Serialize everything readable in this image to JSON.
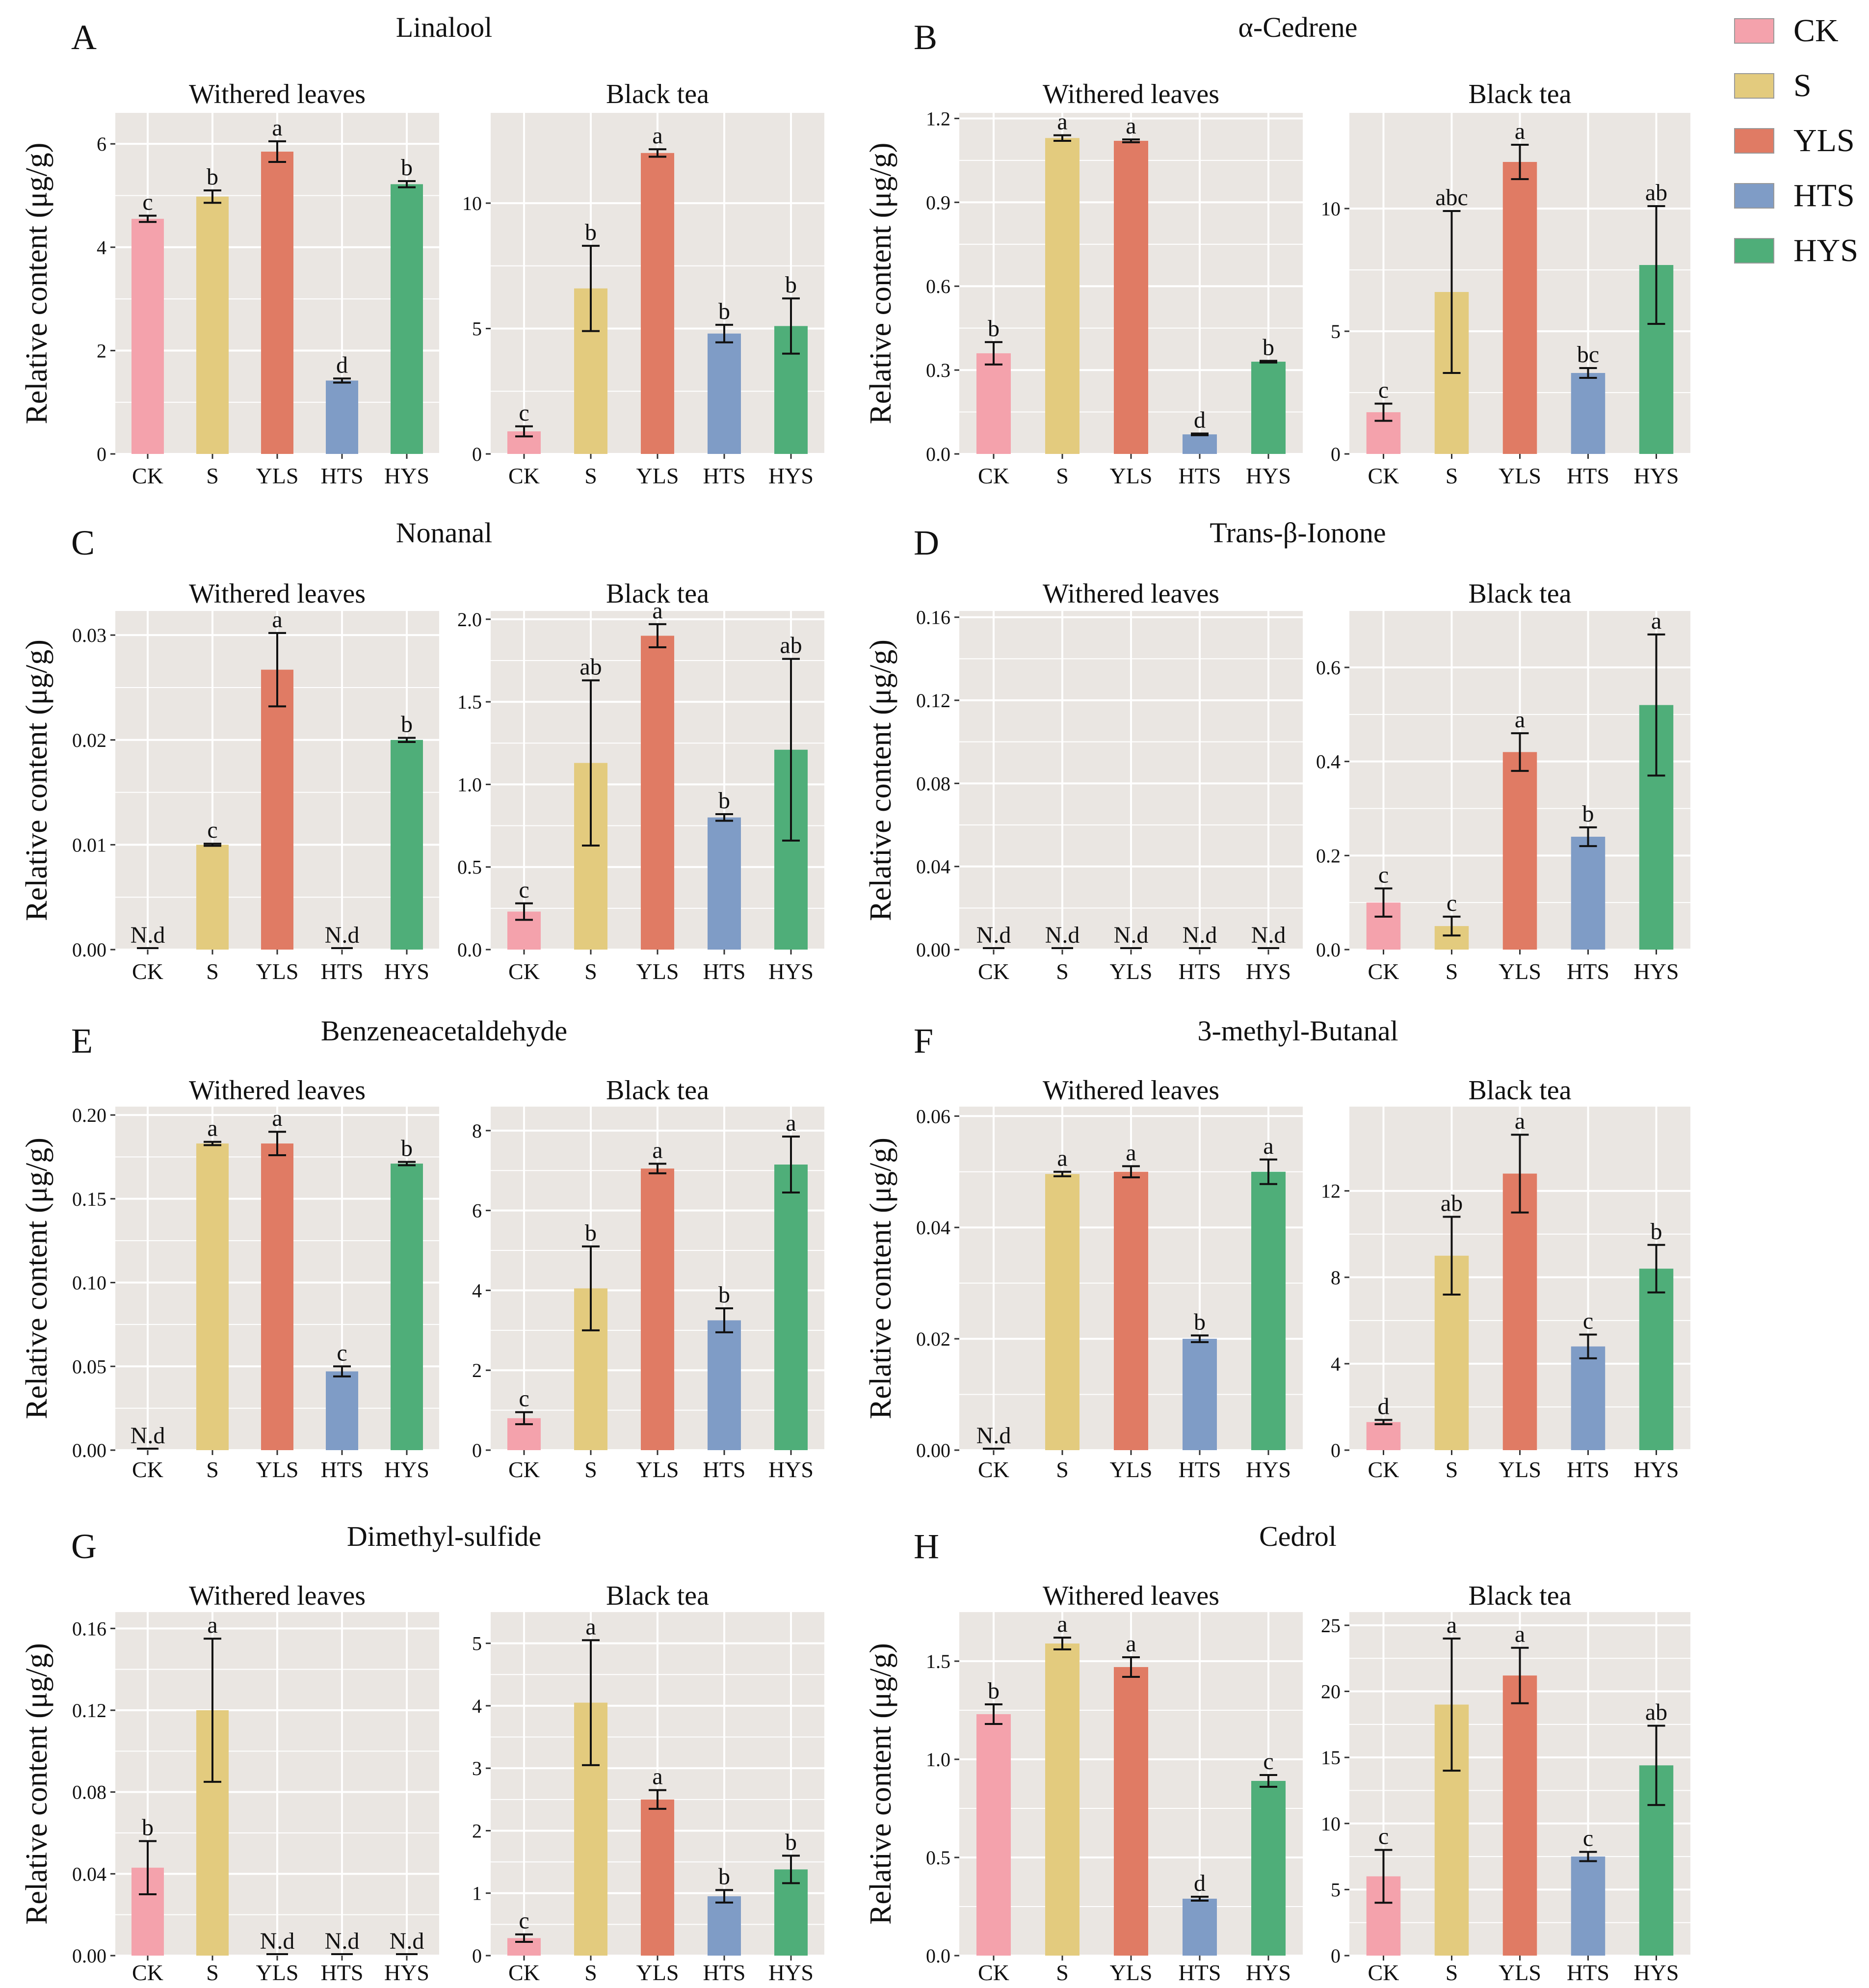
{
  "legend": [
    {
      "label": "CK",
      "color": "#F4A2AC"
    },
    {
      "label": "S",
      "color": "#E3CB7E"
    },
    {
      "label": "YLS",
      "color": "#E07B64"
    },
    {
      "label": "HTS",
      "color": "#7F9CC6"
    },
    {
      "label": "HYS",
      "color": "#4FAE79"
    }
  ],
  "colors": {
    "panel_bg": "#EAE6E2",
    "grid": "#FFFFFF",
    "error_bar": "#111111"
  },
  "ylabel": "Relative content (μg/g)",
  "nd_label": "N.d",
  "chart_data": [
    {
      "letter": "A",
      "compound": "Linalool",
      "subplots": [
        {
          "type": "bar",
          "title": "Withered leaves",
          "categories": [
            "CK",
            "S",
            "YLS",
            "HTS",
            "HYS"
          ],
          "values": [
            4.55,
            4.98,
            5.85,
            1.42,
            5.22
          ],
          "errors": [
            0.06,
            0.12,
            0.2,
            0.04,
            0.06
          ],
          "labels": [
            "c",
            "b",
            "a",
            "d",
            "b"
          ],
          "ylim": [
            0,
            6.6
          ],
          "ticks": [
            0,
            2,
            4,
            6
          ],
          "tick_labels": [
            "0",
            "2",
            "4",
            "6"
          ]
        },
        {
          "type": "bar",
          "title": "Black tea",
          "categories": [
            "CK",
            "S",
            "YLS",
            "HTS",
            "HYS"
          ],
          "values": [
            0.9,
            6.6,
            12.0,
            4.8,
            5.1
          ],
          "errors": [
            0.2,
            1.7,
            0.15,
            0.35,
            1.1
          ],
          "labels": [
            "c",
            "b",
            "a",
            "b",
            "b"
          ],
          "ylim": [
            0,
            13.6
          ],
          "ticks": [
            0,
            5,
            10
          ],
          "tick_labels": [
            "0",
            "5",
            "10"
          ]
        }
      ]
    },
    {
      "letter": "B",
      "compound": "α-Cedrene",
      "subplots": [
        {
          "type": "bar",
          "title": "Withered leaves",
          "categories": [
            "CK",
            "S",
            "YLS",
            "HTS",
            "HYS"
          ],
          "values": [
            0.36,
            1.13,
            1.12,
            0.07,
            0.33
          ],
          "errors": [
            0.04,
            0.01,
            0.005,
            0.003,
            0.003
          ],
          "labels": [
            "b",
            "a",
            "a",
            "d",
            "b"
          ],
          "ylim": [
            0,
            1.22
          ],
          "ticks": [
            0,
            0.3,
            0.6,
            0.9,
            1.2
          ],
          "tick_labels": [
            "0.0",
            "0.3",
            "0.6",
            "0.9",
            "1.2"
          ]
        },
        {
          "type": "bar",
          "title": "Black tea",
          "categories": [
            "CK",
            "S",
            "YLS",
            "HTS",
            "HYS"
          ],
          "values": [
            1.7,
            6.6,
            11.9,
            3.3,
            7.7
          ],
          "errors": [
            0.35,
            3.3,
            0.7,
            0.2,
            2.4
          ],
          "labels": [
            "c",
            "abc",
            "a",
            "bc",
            "ab"
          ],
          "ylim": [
            0,
            13.9
          ],
          "ticks": [
            0,
            5,
            10
          ],
          "tick_labels": [
            "0",
            "5",
            "10"
          ]
        }
      ]
    },
    {
      "letter": "C",
      "compound": "Nonanal",
      "subplots": [
        {
          "type": "bar",
          "title": "Withered leaves",
          "categories": [
            "CK",
            "S",
            "YLS",
            "HTS",
            "HYS"
          ],
          "values": [
            0,
            0.01,
            0.0267,
            0,
            0.02
          ],
          "errors": [
            0,
            0.0001,
            0.0035,
            0,
            0.0002
          ],
          "labels": [
            "N.d",
            "c",
            "a",
            "N.d",
            "b"
          ],
          "ylim": [
            0,
            0.0323
          ],
          "ticks": [
            0,
            0.01,
            0.02,
            0.03
          ],
          "tick_labels": [
            "0.00",
            "0.01",
            "0.02",
            "0.03"
          ]
        },
        {
          "type": "bar",
          "title": "Black tea",
          "categories": [
            "CK",
            "S",
            "YLS",
            "HTS",
            "HYS"
          ],
          "values": [
            0.23,
            1.13,
            1.9,
            0.8,
            1.21
          ],
          "errors": [
            0.05,
            0.5,
            0.07,
            0.02,
            0.55
          ],
          "labels": [
            "c",
            "ab",
            "a",
            "b",
            "ab"
          ],
          "ylim": [
            0,
            2.05
          ],
          "ticks": [
            0,
            0.5,
            1.0,
            1.5,
            2.0
          ],
          "tick_labels": [
            "0.0",
            "0.5",
            "1.0",
            "1.5",
            "2.0"
          ]
        }
      ]
    },
    {
      "letter": "D",
      "compound": "Trans-β-Ionone",
      "subplots": [
        {
          "type": "bar",
          "title": "Withered leaves",
          "categories": [
            "CK",
            "S",
            "YLS",
            "HTS",
            "HYS"
          ],
          "values": [
            0,
            0,
            0,
            0,
            0
          ],
          "errors": [
            0,
            0,
            0,
            0,
            0
          ],
          "labels": [
            "N.d",
            "N.d",
            "N.d",
            "N.d",
            "N.d"
          ],
          "ylim": [
            0,
            0.163
          ],
          "ticks": [
            0,
            0.04,
            0.08,
            0.12,
            0.16
          ],
          "tick_labels": [
            "0.00",
            "0.04",
            "0.08",
            "0.12",
            "0.16"
          ]
        },
        {
          "type": "bar",
          "title": "Black tea",
          "categories": [
            "CK",
            "S",
            "YLS",
            "HTS",
            "HYS"
          ],
          "values": [
            0.1,
            0.05,
            0.42,
            0.24,
            0.52
          ],
          "errors": [
            0.03,
            0.02,
            0.04,
            0.02,
            0.15
          ],
          "labels": [
            "c",
            "c",
            "a",
            "b",
            "a"
          ],
          "ylim": [
            0,
            0.72
          ],
          "ticks": [
            0,
            0.2,
            0.4,
            0.6
          ],
          "tick_labels": [
            "0.0",
            "0.2",
            "0.4",
            "0.6"
          ]
        }
      ]
    },
    {
      "letter": "E",
      "compound": "Benzeneacetaldehyde",
      "subplots": [
        {
          "type": "bar",
          "title": "Withered leaves",
          "categories": [
            "CK",
            "S",
            "YLS",
            "HTS",
            "HYS"
          ],
          "values": [
            0,
            0.183,
            0.183,
            0.047,
            0.171
          ],
          "errors": [
            0,
            0.001,
            0.007,
            0.003,
            0.001
          ],
          "labels": [
            "N.d",
            "a",
            "a",
            "c",
            "b"
          ],
          "ylim": [
            0,
            0.205
          ],
          "ticks": [
            0,
            0.05,
            0.1,
            0.15,
            0.2
          ],
          "tick_labels": [
            "0.00",
            "0.05",
            "0.10",
            "0.15",
            "0.20"
          ]
        },
        {
          "type": "bar",
          "title": "Black tea",
          "categories": [
            "CK",
            "S",
            "YLS",
            "HTS",
            "HYS"
          ],
          "values": [
            0.8,
            4.05,
            7.05,
            3.25,
            7.15
          ],
          "errors": [
            0.15,
            1.05,
            0.12,
            0.3,
            0.7
          ],
          "labels": [
            "c",
            "b",
            "a",
            "b",
            "a"
          ],
          "ylim": [
            0,
            8.6
          ],
          "ticks": [
            0,
            2,
            4,
            6,
            8
          ],
          "tick_labels": [
            "0",
            "2",
            "4",
            "6",
            "8"
          ]
        }
      ]
    },
    {
      "letter": "F",
      "compound": "3-methyl-Butanal",
      "subplots": [
        {
          "type": "bar",
          "title": "Withered leaves",
          "categories": [
            "CK",
            "S",
            "YLS",
            "HTS",
            "HYS"
          ],
          "values": [
            0,
            0.0496,
            0.05,
            0.02,
            0.05
          ],
          "errors": [
            0,
            0.0004,
            0.001,
            0.0006,
            0.0022
          ],
          "labels": [
            "N.d",
            "a",
            "a",
            "b",
            "a"
          ],
          "ylim": [
            0,
            0.0617
          ],
          "ticks": [
            0,
            0.02,
            0.04,
            0.06
          ],
          "tick_labels": [
            "0.00",
            "0.02",
            "0.04",
            "0.06"
          ]
        },
        {
          "type": "bar",
          "title": "Black tea",
          "categories": [
            "CK",
            "S",
            "YLS",
            "HTS",
            "HYS"
          ],
          "values": [
            1.3,
            9.0,
            12.8,
            4.8,
            8.4
          ],
          "errors": [
            0.1,
            1.8,
            1.8,
            0.55,
            1.1
          ],
          "labels": [
            "d",
            "ab",
            "a",
            "c",
            "b"
          ],
          "ylim": [
            0,
            15.9
          ],
          "ticks": [
            0,
            4,
            8,
            12
          ],
          "tick_labels": [
            "0",
            "4",
            "8",
            "12"
          ]
        }
      ]
    },
    {
      "letter": "G",
      "compound": "Dimethyl-sulfide",
      "subplots": [
        {
          "type": "bar",
          "title": "Withered leaves",
          "categories": [
            "CK",
            "S",
            "YLS",
            "HTS",
            "HYS"
          ],
          "values": [
            0.043,
            0.12,
            0,
            0,
            0
          ],
          "errors": [
            0.013,
            0.035,
            0,
            0,
            0
          ],
          "labels": [
            "b",
            "a",
            "N.d",
            "N.d",
            "N.d"
          ],
          "ylim": [
            0,
            0.168
          ],
          "ticks": [
            0,
            0.04,
            0.08,
            0.12,
            0.16
          ],
          "tick_labels": [
            "0.00",
            "0.04",
            "0.08",
            "0.12",
            "0.16"
          ]
        },
        {
          "type": "bar",
          "title": "Black tea",
          "categories": [
            "CK",
            "S",
            "YLS",
            "HTS",
            "HYS"
          ],
          "values": [
            0.28,
            4.05,
            2.5,
            0.95,
            1.38
          ],
          "errors": [
            0.06,
            1.0,
            0.15,
            0.1,
            0.22
          ],
          "labels": [
            "c",
            "a",
            "a",
            "b",
            "b"
          ],
          "ylim": [
            0,
            5.5
          ],
          "ticks": [
            0,
            1,
            2,
            3,
            4,
            5
          ],
          "tick_labels": [
            "0",
            "1",
            "2",
            "3",
            "4",
            "5"
          ]
        }
      ]
    },
    {
      "letter": "H",
      "compound": "Cedrol",
      "subplots": [
        {
          "type": "bar",
          "title": "Withered leaves",
          "categories": [
            "CK",
            "S",
            "YLS",
            "HTS",
            "HYS"
          ],
          "values": [
            1.23,
            1.59,
            1.47,
            0.29,
            0.89
          ],
          "errors": [
            0.05,
            0.03,
            0.05,
            0.01,
            0.03
          ],
          "labels": [
            "b",
            "a",
            "a",
            "d",
            "c"
          ],
          "ylim": [
            0,
            1.75
          ],
          "ticks": [
            0,
            0.5,
            1.0,
            1.5
          ],
          "tick_labels": [
            "0.0",
            "0.5",
            "1.0",
            "1.5"
          ]
        },
        {
          "type": "bar",
          "title": "Black tea",
          "categories": [
            "CK",
            "S",
            "YLS",
            "HTS",
            "HYS"
          ],
          "values": [
            6.0,
            19.0,
            21.2,
            7.5,
            14.4
          ],
          "errors": [
            2.0,
            5.0,
            2.1,
            0.35,
            3.0
          ],
          "labels": [
            "c",
            "a",
            "a",
            "c",
            "ab"
          ],
          "ylim": [
            0,
            26.0
          ],
          "ticks": [
            0,
            5,
            10,
            15,
            20,
            25
          ],
          "tick_labels": [
            "0",
            "5",
            "10",
            "15",
            "20",
            "25"
          ]
        }
      ]
    }
  ]
}
